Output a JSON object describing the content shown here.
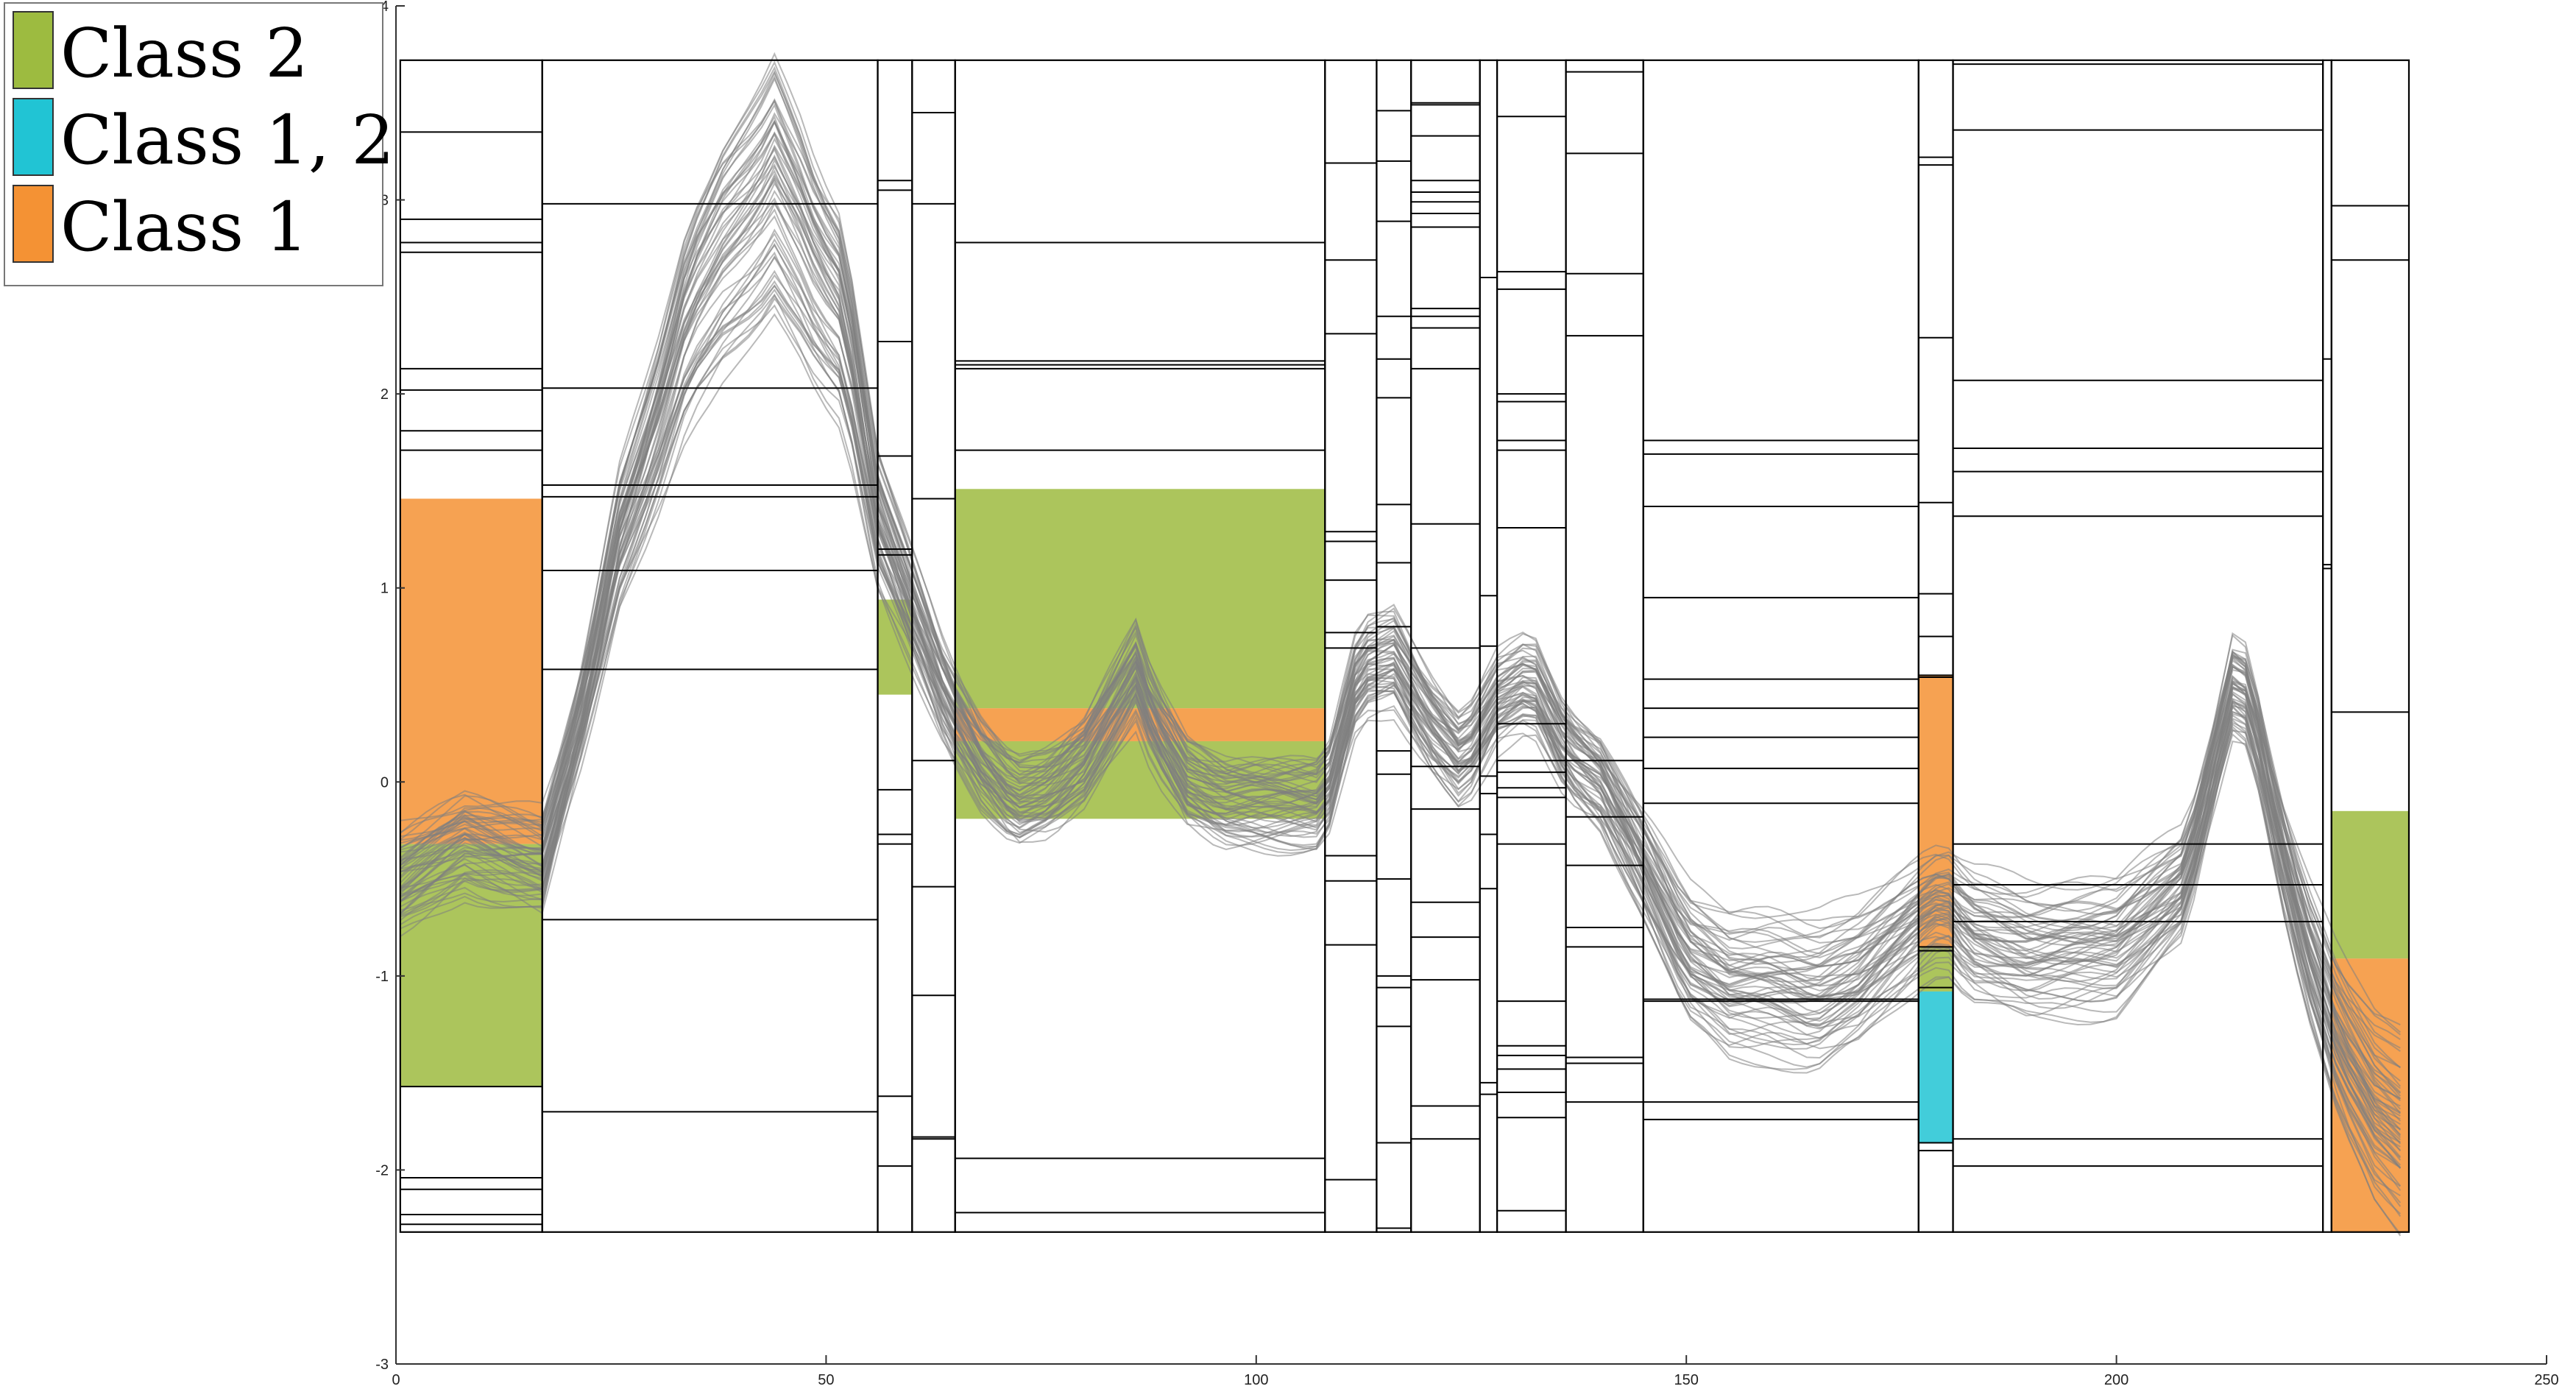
{
  "chart_data": {
    "type": "line",
    "xlim": [
      0,
      250
    ],
    "ylim": [
      -3,
      4
    ],
    "xticks": [
      "0",
      "50",
      "100",
      "150",
      "200",
      "250"
    ],
    "yticks": [
      "-3",
      "-2",
      "-1",
      "0",
      "1",
      "2",
      "3",
      "4"
    ],
    "grid": false,
    "legend": {
      "placement": "top-left",
      "entries": [
        {
          "label": "Class 2",
          "color": "#9dbb40"
        },
        {
          "label": "Class 1, 2",
          "color": "#21c4d4"
        },
        {
          "label": "Class 1",
          "color": "#f49234"
        }
      ]
    },
    "series_color": "#7f7f7f",
    "line_count": 60,
    "mean_curve": {
      "x": [
        0,
        8,
        17,
        22,
        26,
        30,
        34,
        38,
        42,
        44,
        47,
        49,
        52,
        56,
        60,
        64,
        68,
        72,
        76,
        80,
        84,
        86,
        88,
        92,
        96,
        100,
        108,
        112,
        116,
        120,
        124,
        128,
        132,
        136,
        140,
        145,
        150,
        155,
        160,
        165,
        170,
        174,
        178,
        180,
        183,
        190,
        200,
        208,
        212,
        214,
        216,
        219,
        222,
        226,
        230,
        234
      ],
      "y": [
        -0.5,
        -0.3,
        -0.4,
        0.4,
        1.2,
        1.7,
        2.3,
        2.6,
        2.8,
        2.95,
        2.7,
        2.5,
        2.3,
        1.3,
        0.85,
        0.4,
        0.1,
        -0.1,
        -0.05,
        0.1,
        0.4,
        0.55,
        0.3,
        0.0,
        -0.1,
        -0.1,
        -0.1,
        0.55,
        0.6,
        0.3,
        0.1,
        0.4,
        0.5,
        0.15,
        0.0,
        -0.4,
        -0.85,
        -1.0,
        -1.0,
        -1.05,
        -0.95,
        -0.8,
        -0.65,
        -0.6,
        -0.75,
        -0.85,
        -0.8,
        -0.5,
        0.2,
        0.55,
        0.3,
        -0.3,
        -0.8,
        -1.3,
        -1.6,
        -1.75
      ]
    },
    "segments": [
      {
        "x0": 0.5,
        "x1": 17,
        "splits": [
          3.35,
          2.9,
          2.78,
          2.73,
          2.13,
          2.02,
          1.81,
          1.71,
          -1.57,
          -2.04,
          -2.1,
          -2.23,
          -2.28
        ],
        "regions": [
          {
            "class": "Class 1",
            "y0": -0.32,
            "y1": 1.46
          },
          {
            "class": "Class 2",
            "y0": -1.57,
            "y1": -0.32
          }
        ]
      },
      {
        "x0": 17,
        "x1": 56,
        "splits": [
          2.98,
          2.03,
          1.53,
          1.47,
          1.09,
          0.58,
          -0.71,
          -1.7
        ],
        "regions": []
      },
      {
        "x0": 56,
        "x1": 60,
        "splits": [
          3.1,
          3.05,
          2.27,
          1.68,
          1.2,
          1.17,
          -0.04,
          -0.27,
          -0.32,
          -1.62,
          -1.98
        ],
        "regions": [
          {
            "class": "Class 2",
            "y0": 0.45,
            "y1": 0.94
          }
        ]
      },
      {
        "x0": 60,
        "x1": 65,
        "splits": [
          3.45,
          2.98,
          1.46,
          0.11,
          -0.54,
          -1.1,
          -1.83,
          -1.84
        ],
        "regions": []
      },
      {
        "x0": 65,
        "x1": 108,
        "splits": [
          2.78,
          2.17,
          2.15,
          2.13,
          1.71,
          -1.94,
          -2.22
        ],
        "regions": [
          {
            "class": "Class 2",
            "y0": -0.19,
            "y1": 0.21
          },
          {
            "class": "Class 1",
            "y0": 0.21,
            "y1": 0.38
          },
          {
            "class": "Class 2",
            "y0": 0.38,
            "y1": 1.51
          }
        ]
      },
      {
        "x0": 108,
        "x1": 114,
        "splits": [
          3.19,
          2.69,
          2.31,
          1.29,
          1.24,
          1.04,
          0.77,
          0.69,
          -0.38,
          -0.51,
          -0.84,
          -2.05
        ],
        "regions": []
      },
      {
        "x0": 114,
        "x1": 118,
        "splits": [
          3.46,
          3.2,
          2.89,
          2.4,
          2.18,
          1.98,
          1.43,
          1.13,
          0.8,
          0.16,
          0.04,
          -0.5,
          -1.0,
          -1.06,
          -1.26,
          -1.86,
          -2.3
        ],
        "regions": []
      },
      {
        "x0": 118,
        "x1": 126,
        "splits": [
          3.5,
          3.49,
          3.33,
          3.1,
          3.04,
          2.99,
          2.93,
          2.86,
          2.44,
          2.4,
          2.34,
          2.13,
          1.33,
          0.69,
          0.08,
          -0.14,
          -0.62,
          -0.8,
          -1.02,
          -1.67,
          -1.84
        ],
        "regions": []
      },
      {
        "x0": 126,
        "x1": 128,
        "splits": [
          2.6,
          0.96,
          0.7,
          0.03,
          -0.06,
          -0.27,
          -0.55,
          -1.55,
          -1.61
        ],
        "regions": []
      },
      {
        "x0": 128,
        "x1": 136,
        "splits": [
          3.43,
          2.63,
          2.54,
          2.0,
          1.96,
          1.76,
          1.71,
          1.31,
          0.3,
          0.11,
          0.05,
          -0.03,
          -0.08,
          -0.32,
          -1.13,
          -1.36,
          -1.41,
          -1.48,
          -1.6,
          -1.73,
          -2.21
        ],
        "regions": []
      },
      {
        "x0": 136,
        "x1": 145,
        "splits": [
          3.72,
          3.66,
          3.24,
          2.62,
          2.3,
          0.11,
          -0.18,
          -0.43,
          -0.75,
          -0.85,
          -1.42,
          -1.45,
          -1.65
        ],
        "regions": []
      },
      {
        "x0": 145,
        "x1": 177,
        "splits": [
          1.76,
          1.69,
          1.42,
          0.95,
          0.53,
          0.38,
          0.23,
          0.07,
          -0.11,
          -1.12,
          -1.13,
          -1.65,
          -1.74
        ],
        "regions": []
      },
      {
        "x0": 177,
        "x1": 181,
        "splits": [
          3.22,
          3.18,
          2.29,
          1.44,
          0.97,
          0.75,
          0.55,
          0.54,
          -0.85,
          -0.87,
          -1.06,
          -1.86,
          -1.9
        ],
        "regions": [
          {
            "class": "Class 1",
            "y0": -0.85,
            "y1": 0.55
          },
          {
            "class": "Class 2",
            "y0": -1.08,
            "y1": -0.85
          },
          {
            "class": "Class 1, 2",
            "y0": -1.86,
            "y1": -1.08
          }
        ]
      },
      {
        "x0": 181,
        "x1": 224,
        "splits": [
          3.7,
          3.36,
          2.07,
          1.72,
          1.6,
          1.37,
          -0.32,
          -0.53,
          -0.72,
          -1.84,
          -1.98
        ],
        "regions": []
      },
      {
        "x0": 224,
        "x1": 225,
        "splits": [
          2.18,
          1.12,
          1.1
        ],
        "regions": []
      },
      {
        "x0": 225,
        "x1": 234,
        "splits": [
          2.97,
          2.69,
          0.36
        ],
        "regions": [
          {
            "class": "Class 1",
            "y0": -2.32,
            "y1": -0.91
          },
          {
            "class": "Class 2",
            "y0": -0.91,
            "y1": -0.15
          }
        ]
      }
    ]
  }
}
